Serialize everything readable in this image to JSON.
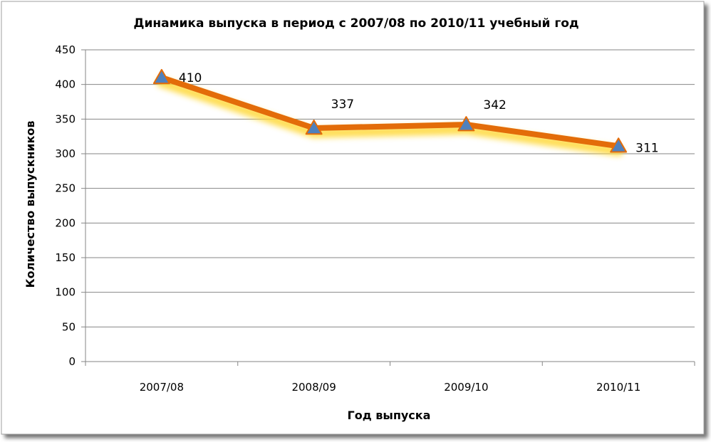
{
  "chart_data": {
    "type": "line",
    "title": "Динамика выпуска в период с 2007/08 по 2010/11 учебный год",
    "xlabel": "Год выпуска",
    "ylabel": "Количество выпускников",
    "categories": [
      "2007/08",
      "2008/09",
      "2009/10",
      "2010/11"
    ],
    "series": [
      {
        "values": [
          410,
          337,
          342,
          311
        ],
        "data_labels": [
          "410",
          "337",
          "342",
          "311"
        ]
      }
    ],
    "ylim": [
      0,
      450
    ],
    "yticks": [
      0,
      50,
      100,
      150,
      200,
      250,
      300,
      350,
      400,
      450
    ],
    "ytick_labels": [
      "0",
      "50",
      "100",
      "150",
      "200",
      "250",
      "300",
      "350",
      "400",
      "450"
    ],
    "grid": true,
    "legend": "none",
    "colors": {
      "line": "#e36c09",
      "glow": "#ffd93b",
      "marker": "#4f81bd",
      "grid": "#868686"
    }
  }
}
